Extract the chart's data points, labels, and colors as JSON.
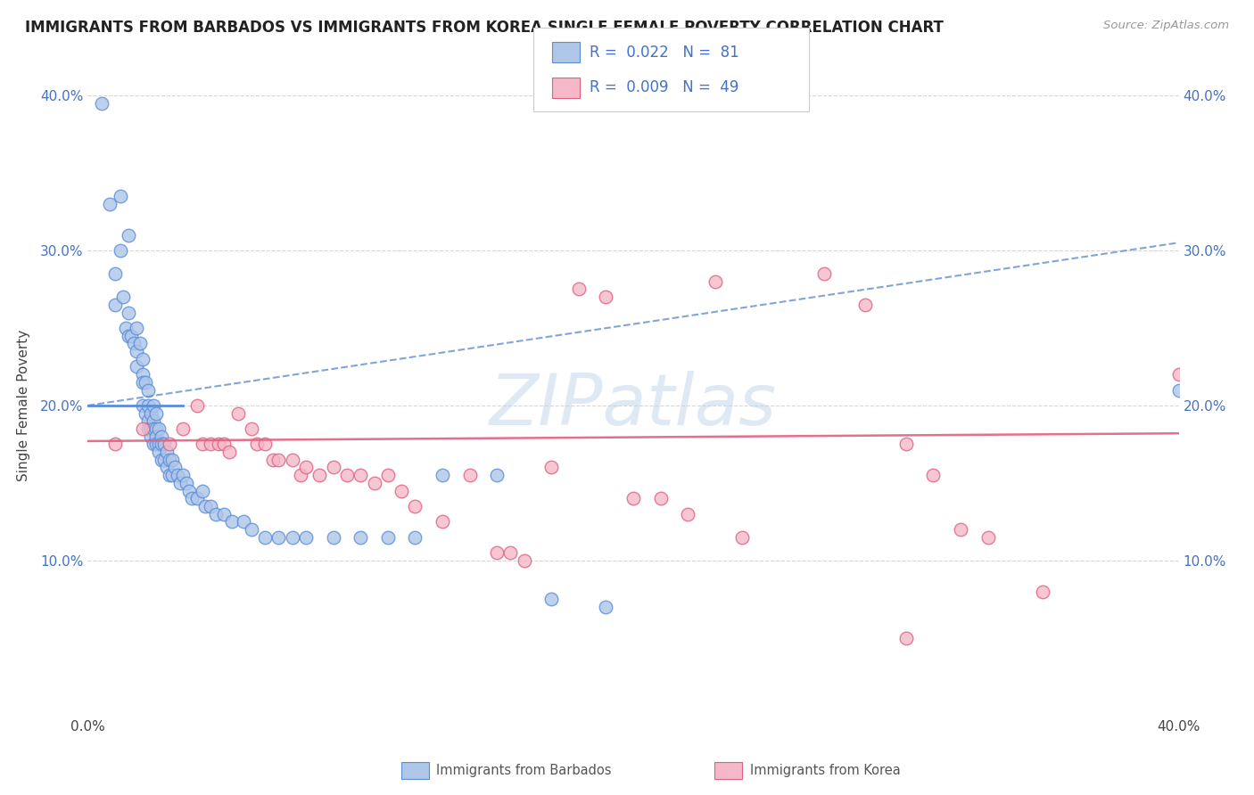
{
  "title": "IMMIGRANTS FROM BARBADOS VS IMMIGRANTS FROM KOREA SINGLE FEMALE POVERTY CORRELATION CHART",
  "source": "Source: ZipAtlas.com",
  "ylabel": "Single Female Poverty",
  "xlim": [
    0.0,
    0.4
  ],
  "ylim": [
    0.0,
    0.4
  ],
  "barbados_R": 0.022,
  "barbados_N": 81,
  "korea_R": 0.009,
  "korea_N": 49,
  "barbados_color": "#aec6e8",
  "korea_color": "#f4b8c8",
  "barbados_edge_color": "#5b8dd9",
  "korea_edge_color": "#e06080",
  "barbados_trend_color": "#6090d0",
  "korea_trend_color": "#e06080",
  "watermark": "ZIPatlas",
  "legend_text_color": "#4472c4",
  "barbados_x": [
    0.005,
    0.008,
    0.01,
    0.01,
    0.012,
    0.012,
    0.013,
    0.014,
    0.015,
    0.015,
    0.015,
    0.016,
    0.017,
    0.018,
    0.018,
    0.018,
    0.019,
    0.02,
    0.02,
    0.02,
    0.02,
    0.021,
    0.021,
    0.022,
    0.022,
    0.022,
    0.022,
    0.023,
    0.023,
    0.023,
    0.024,
    0.024,
    0.024,
    0.024,
    0.025,
    0.025,
    0.025,
    0.025,
    0.026,
    0.026,
    0.026,
    0.027,
    0.027,
    0.027,
    0.028,
    0.028,
    0.029,
    0.029,
    0.03,
    0.03,
    0.031,
    0.031,
    0.032,
    0.033,
    0.034,
    0.035,
    0.036,
    0.037,
    0.038,
    0.04,
    0.042,
    0.043,
    0.045,
    0.047,
    0.05,
    0.053,
    0.057,
    0.06,
    0.065,
    0.07,
    0.075,
    0.08,
    0.09,
    0.1,
    0.11,
    0.12,
    0.13,
    0.15,
    0.17,
    0.19,
    0.4
  ],
  "barbados_y": [
    0.395,
    0.33,
    0.285,
    0.265,
    0.3,
    0.335,
    0.27,
    0.25,
    0.26,
    0.245,
    0.31,
    0.245,
    0.24,
    0.25,
    0.235,
    0.225,
    0.24,
    0.23,
    0.22,
    0.215,
    0.2,
    0.215,
    0.195,
    0.21,
    0.2,
    0.19,
    0.185,
    0.195,
    0.185,
    0.18,
    0.2,
    0.19,
    0.185,
    0.175,
    0.195,
    0.185,
    0.18,
    0.175,
    0.185,
    0.175,
    0.17,
    0.18,
    0.175,
    0.165,
    0.175,
    0.165,
    0.17,
    0.16,
    0.165,
    0.155,
    0.165,
    0.155,
    0.16,
    0.155,
    0.15,
    0.155,
    0.15,
    0.145,
    0.14,
    0.14,
    0.145,
    0.135,
    0.135,
    0.13,
    0.13,
    0.125,
    0.125,
    0.12,
    0.115,
    0.115,
    0.115,
    0.115,
    0.115,
    0.115,
    0.115,
    0.115,
    0.155,
    0.155,
    0.075,
    0.07,
    0.21
  ],
  "korea_x": [
    0.01,
    0.02,
    0.03,
    0.035,
    0.04,
    0.042,
    0.045,
    0.048,
    0.05,
    0.052,
    0.055,
    0.06,
    0.062,
    0.065,
    0.068,
    0.07,
    0.075,
    0.078,
    0.08,
    0.085,
    0.09,
    0.095,
    0.1,
    0.105,
    0.11,
    0.115,
    0.12,
    0.13,
    0.14,
    0.15,
    0.155,
    0.16,
    0.17,
    0.18,
    0.19,
    0.2,
    0.21,
    0.22,
    0.23,
    0.24,
    0.27,
    0.285,
    0.3,
    0.31,
    0.32,
    0.33,
    0.35,
    0.4,
    0.3
  ],
  "korea_y": [
    0.175,
    0.185,
    0.175,
    0.185,
    0.2,
    0.175,
    0.175,
    0.175,
    0.175,
    0.17,
    0.195,
    0.185,
    0.175,
    0.175,
    0.165,
    0.165,
    0.165,
    0.155,
    0.16,
    0.155,
    0.16,
    0.155,
    0.155,
    0.15,
    0.155,
    0.145,
    0.135,
    0.125,
    0.155,
    0.105,
    0.105,
    0.1,
    0.16,
    0.275,
    0.27,
    0.14,
    0.14,
    0.13,
    0.28,
    0.115,
    0.285,
    0.265,
    0.175,
    0.155,
    0.12,
    0.115,
    0.08,
    0.22,
    0.05
  ]
}
